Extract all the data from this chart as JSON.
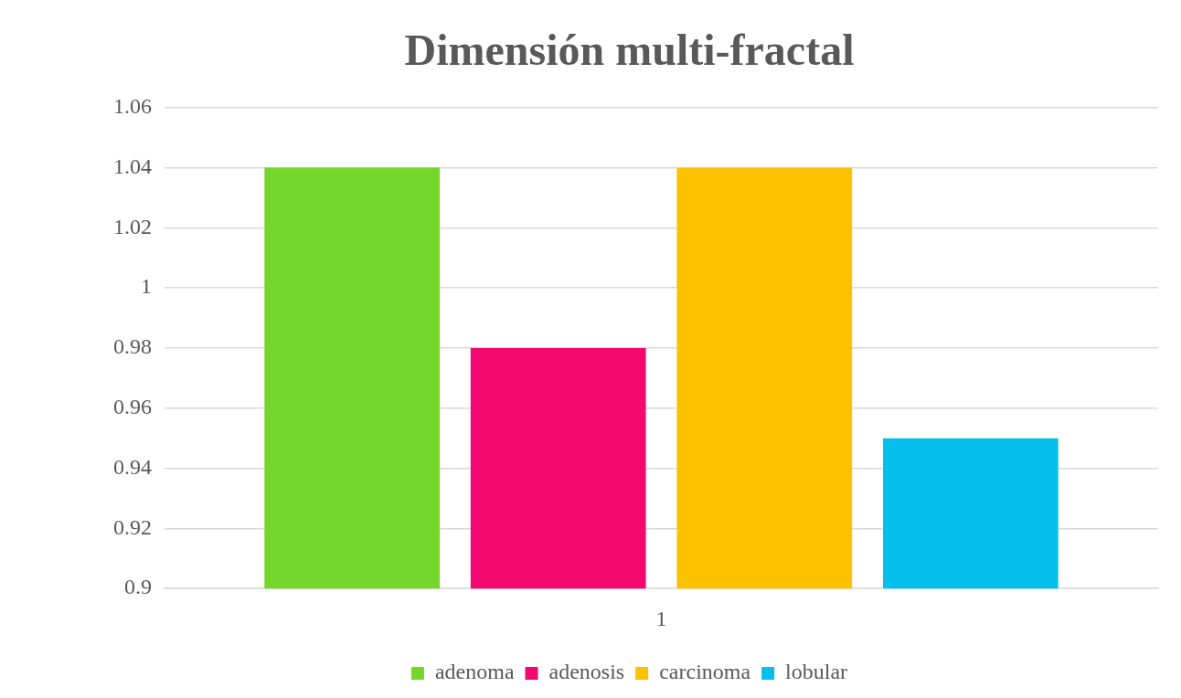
{
  "chart_data": {
    "type": "bar",
    "title": "Dimensión multi-fractal",
    "categories": [
      "1"
    ],
    "series": [
      {
        "name": "adenoma",
        "color": "#74d62a",
        "values": [
          1.04
        ]
      },
      {
        "name": "adenosis",
        "color": "#f2086f",
        "values": [
          0.98
        ]
      },
      {
        "name": "carcinoma",
        "color": "#fcc200",
        "values": [
          1.04
        ]
      },
      {
        "name": "lobular",
        "color": "#06bfec",
        "values": [
          0.95
        ]
      }
    ],
    "ylim": [
      0.9,
      1.06
    ],
    "yticks": [
      {
        "value": 0.9,
        "label": "0.9"
      },
      {
        "value": 0.92,
        "label": "0.92"
      },
      {
        "value": 0.94,
        "label": "0.94"
      },
      {
        "value": 0.96,
        "label": "0.96"
      },
      {
        "value": 0.98,
        "label": "0.98"
      },
      {
        "value": 1,
        "label": "1"
      },
      {
        "value": 1.02,
        "label": "1.02"
      },
      {
        "value": 1.04,
        "label": "1.04"
      },
      {
        "value": 1.06,
        "label": "1.06"
      }
    ],
    "grid": "y",
    "legend": "bottom"
  }
}
